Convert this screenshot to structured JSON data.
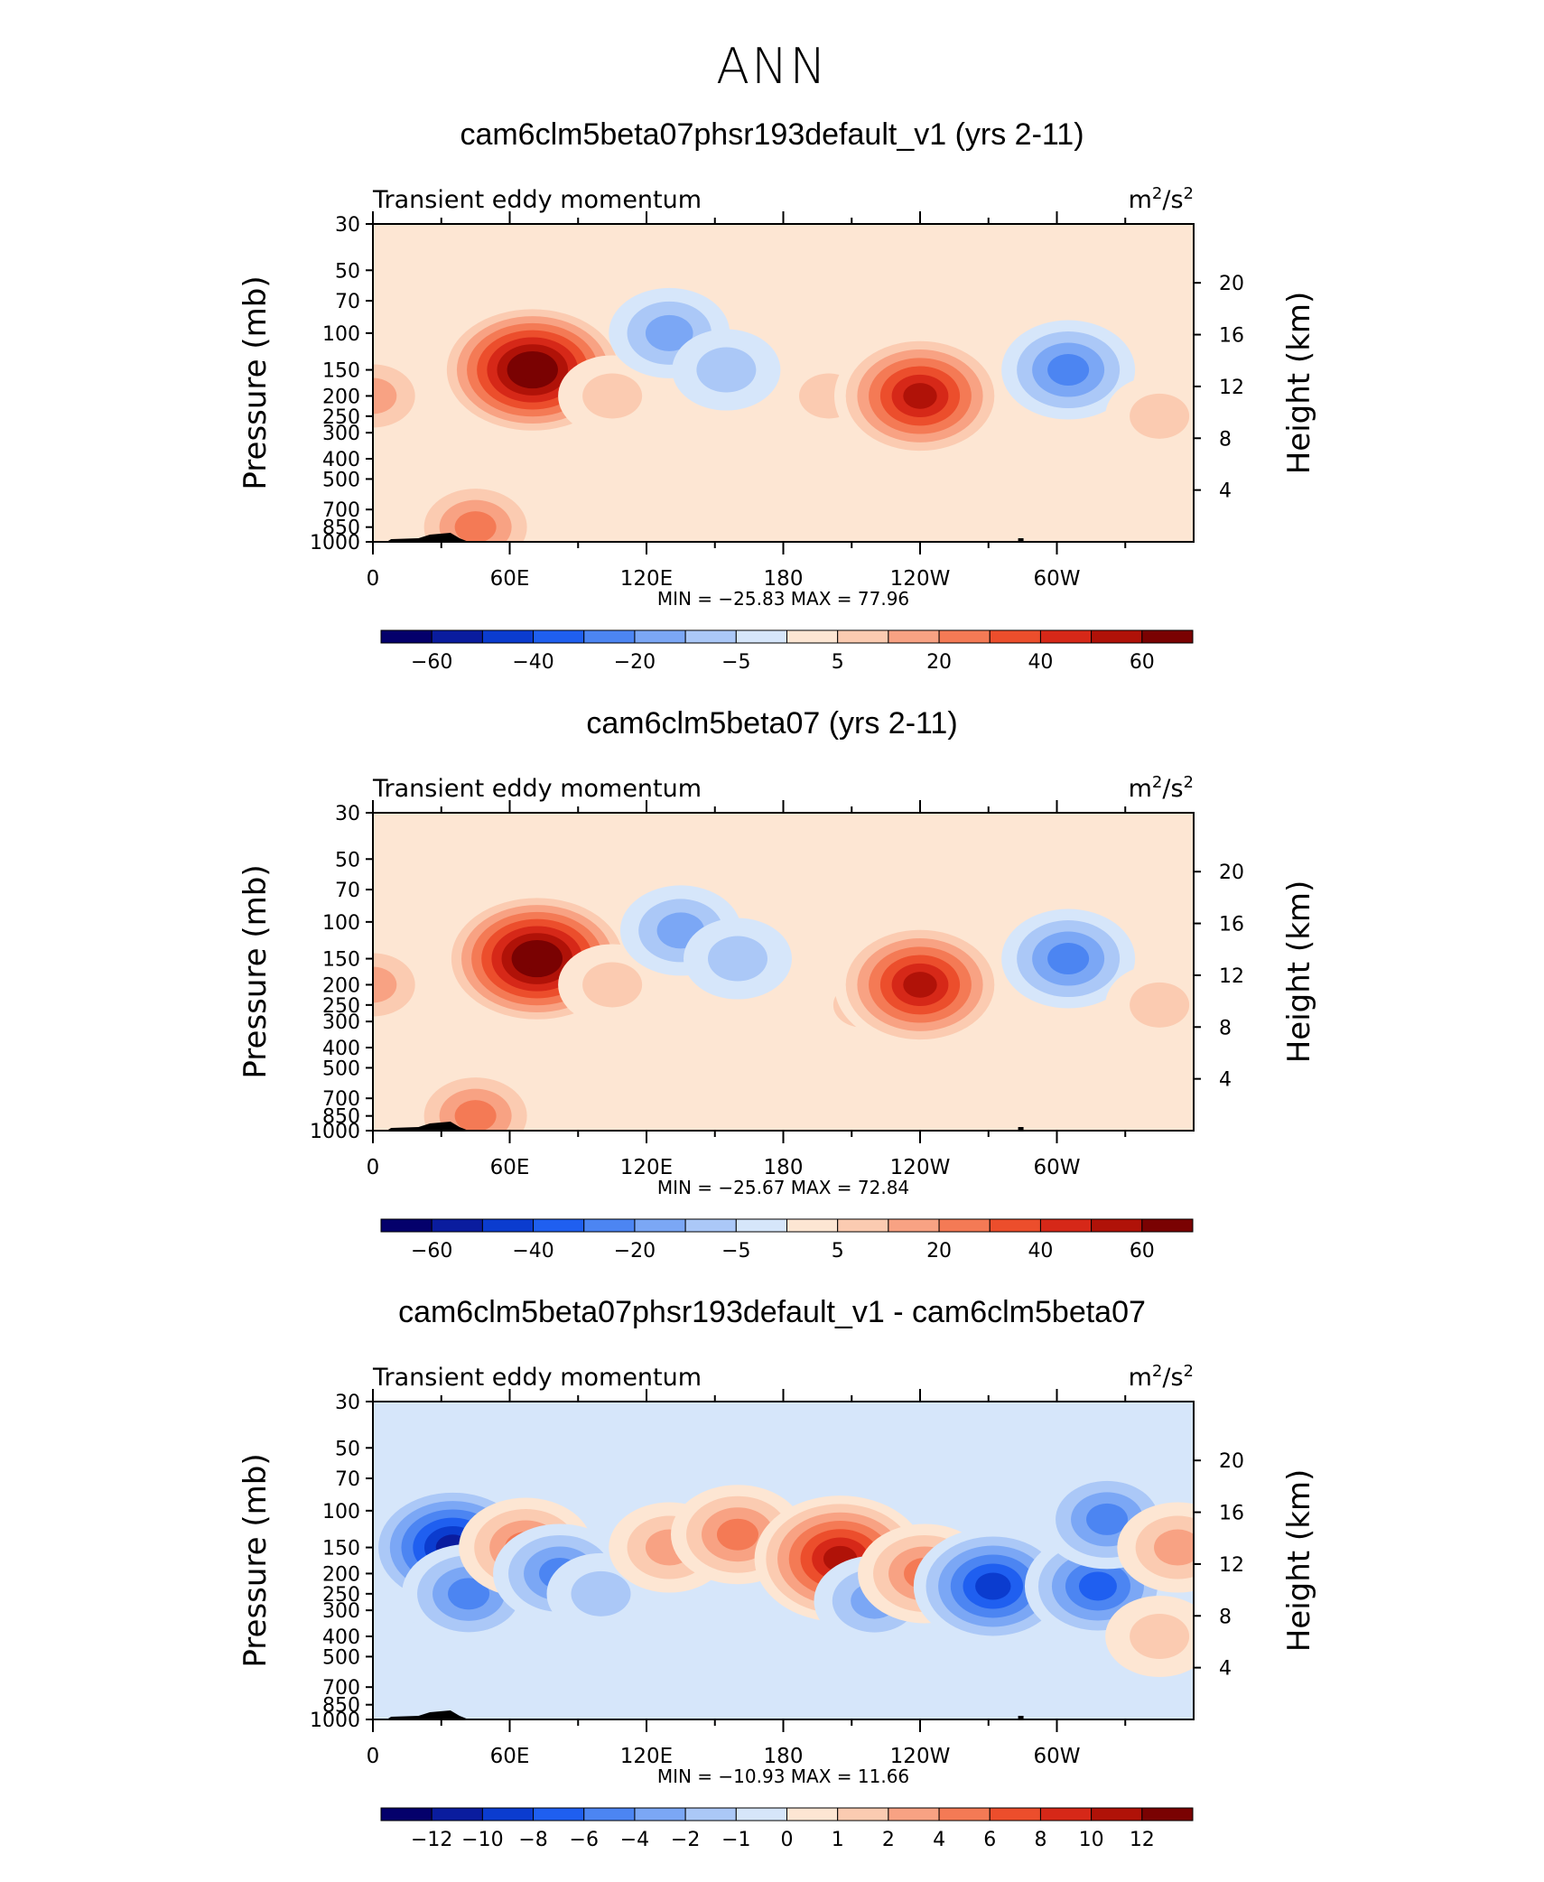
{
  "figure": {
    "title": "ANN"
  },
  "chart_data": [
    {
      "type": "heatmap",
      "title": "cam6clm5beta07phsr193default_v1 (yrs 2-11)",
      "variable": "Transient eddy momentum",
      "units_base": "m",
      "units_exp1": "2",
      "units_mid": "/s",
      "units_exp2": "2",
      "ylabel": "Pressure (mb)",
      "ylabel_right": "Height (km)",
      "pressure_ticks": [
        "30",
        "50",
        "70",
        "100",
        "150",
        "200",
        "250",
        "300",
        "400",
        "500",
        "700",
        "850",
        "1000"
      ],
      "height_ticks": [
        "4",
        "8",
        "12",
        "16",
        "20"
      ],
      "lon_ticks": [
        "0",
        "60E",
        "120E",
        "180",
        "120W",
        "60W"
      ],
      "stats_text": "MIN =  −25.83   MAX =   77.96",
      "min": -25.83,
      "max": 77.96,
      "colorbar_labels": [
        "−60",
        "−40",
        "−20",
        "−5",
        "5",
        "20",
        "40",
        "60"
      ],
      "colorbar_levels": [
        -70,
        -60,
        -50,
        -40,
        -30,
        -20,
        -10,
        -5,
        0,
        5,
        10,
        20,
        30,
        40,
        50,
        60,
        70
      ],
      "features": [
        {
          "lon": 70,
          "p": 150,
          "value": 77.96
        },
        {
          "lon": 105,
          "p": 200,
          "value": 8
        },
        {
          "lon": 0,
          "p": 200,
          "value": 12
        },
        {
          "lon": 45,
          "p": 850,
          "value": 25
        },
        {
          "lon": 130,
          "p": 100,
          "value": -12
        },
        {
          "lon": 155,
          "p": 150,
          "value": -8
        },
        {
          "lon": 200,
          "p": 200,
          "value": 6
        },
        {
          "lon": 240,
          "p": 200,
          "value": 60
        },
        {
          "lon": 305,
          "p": 150,
          "value": -25.83
        },
        {
          "lon": 345,
          "p": 250,
          "value": 6
        }
      ]
    },
    {
      "type": "heatmap",
      "title": "cam6clm5beta07 (yrs 2-11)",
      "variable": "Transient eddy momentum",
      "units_base": "m",
      "units_exp1": "2",
      "units_mid": "/s",
      "units_exp2": "2",
      "ylabel": "Pressure (mb)",
      "ylabel_right": "Height (km)",
      "pressure_ticks": [
        "30",
        "50",
        "70",
        "100",
        "150",
        "200",
        "250",
        "300",
        "400",
        "500",
        "700",
        "850",
        "1000"
      ],
      "height_ticks": [
        "4",
        "8",
        "12",
        "16",
        "20"
      ],
      "lon_ticks": [
        "0",
        "60E",
        "120E",
        "180",
        "120W",
        "60W"
      ],
      "stats_text": "MIN =  −25.67   MAX =   72.84",
      "min": -25.67,
      "max": 72.84,
      "colorbar_labels": [
        "−60",
        "−40",
        "−20",
        "−5",
        "5",
        "20",
        "40",
        "60"
      ],
      "colorbar_levels": [
        -70,
        -60,
        -50,
        -40,
        -30,
        -20,
        -10,
        -5,
        0,
        5,
        10,
        20,
        30,
        40,
        50,
        60,
        70
      ],
      "features": [
        {
          "lon": 72,
          "p": 150,
          "value": 72.84
        },
        {
          "lon": 105,
          "p": 200,
          "value": 8
        },
        {
          "lon": 0,
          "p": 200,
          "value": 12
        },
        {
          "lon": 45,
          "p": 850,
          "value": 25
        },
        {
          "lon": 135,
          "p": 110,
          "value": -12
        },
        {
          "lon": 160,
          "p": 150,
          "value": -8
        },
        {
          "lon": 215,
          "p": 250,
          "value": 6
        },
        {
          "lon": 240,
          "p": 200,
          "value": 58
        },
        {
          "lon": 305,
          "p": 150,
          "value": -25.67
        },
        {
          "lon": 345,
          "p": 250,
          "value": 6
        }
      ]
    },
    {
      "type": "heatmap",
      "title": "cam6clm5beta07phsr193default_v1 - cam6clm5beta07",
      "variable": "Transient eddy momentum",
      "units_base": "m",
      "units_exp1": "2",
      "units_mid": "/s",
      "units_exp2": "2",
      "ylabel": "Pressure (mb)",
      "ylabel_right": "Height (km)",
      "pressure_ticks": [
        "30",
        "50",
        "70",
        "100",
        "150",
        "200",
        "250",
        "300",
        "400",
        "500",
        "700",
        "850",
        "1000"
      ],
      "height_ticks": [
        "4",
        "8",
        "12",
        "16",
        "20"
      ],
      "lon_ticks": [
        "0",
        "60E",
        "120E",
        "180",
        "120W",
        "60W"
      ],
      "stats_text": "MIN =  −10.93   MAX =   11.66",
      "min": -10.93,
      "max": 11.66,
      "colorbar_labels": [
        "−12",
        "−10",
        "−8",
        "−6",
        "−4",
        "−2",
        "−1",
        "0",
        "1",
        "2",
        "4",
        "6",
        "8",
        "10",
        "12"
      ],
      "colorbar_levels": [
        -14,
        -12,
        -10,
        -8,
        -6,
        -4,
        -2,
        -1,
        0,
        1,
        2,
        4,
        6,
        8,
        10,
        12,
        14
      ],
      "features": [
        {
          "lon": 35,
          "p": 150,
          "value": -10.93
        },
        {
          "lon": 42,
          "p": 250,
          "value": -6
        },
        {
          "lon": 67,
          "p": 150,
          "value": 6
        },
        {
          "lon": 82,
          "p": 200,
          "value": -5
        },
        {
          "lon": 100,
          "p": 250,
          "value": -2
        },
        {
          "lon": 130,
          "p": 150,
          "value": 4
        },
        {
          "lon": 160,
          "p": 130,
          "value": 6
        },
        {
          "lon": 205,
          "p": 170,
          "value": 11.66
        },
        {
          "lon": 220,
          "p": 270,
          "value": -4
        },
        {
          "lon": 242,
          "p": 200,
          "value": 6
        },
        {
          "lon": 272,
          "p": 230,
          "value": -10
        },
        {
          "lon": 318,
          "p": 230,
          "value": -8
        },
        {
          "lon": 322,
          "p": 110,
          "value": -6
        },
        {
          "lon": 345,
          "p": 400,
          "value": 2
        },
        {
          "lon": 353,
          "p": 150,
          "value": 4
        }
      ]
    }
  ]
}
